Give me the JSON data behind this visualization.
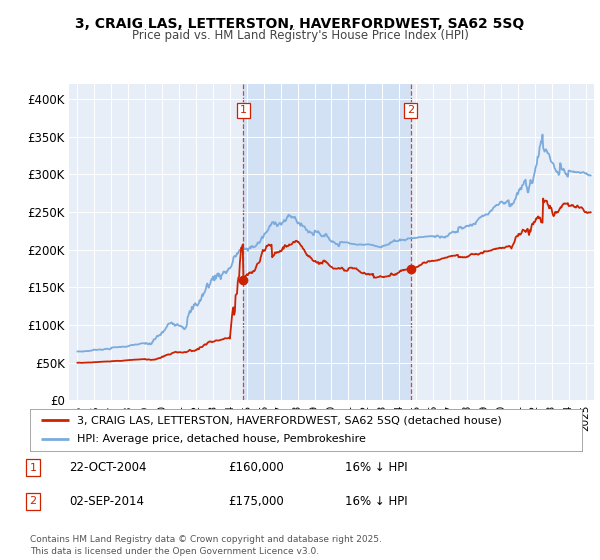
{
  "title": "3, CRAIG LAS, LETTERSTON, HAVERFORDWEST, SA62 5SQ",
  "subtitle": "Price paid vs. HM Land Registry's House Price Index (HPI)",
  "bg_color": "#ffffff",
  "plot_bg": "#e8eef8",
  "shade_color": "#d0dff5",
  "red_color": "#cc2200",
  "blue_color": "#7aabdc",
  "sale1_year": 2004.8,
  "sale2_year": 2014.67,
  "legend_label_red": "3, CRAIG LAS, LETTERSTON, HAVERFORDWEST, SA62 5SQ (detached house)",
  "legend_label_blue": "HPI: Average price, detached house, Pembrokeshire",
  "sale1_date": "22-OCT-2004",
  "sale1_price": "£160,000",
  "sale1_hpi": "16% ↓ HPI",
  "sale2_date": "02-SEP-2014",
  "sale2_price": "£175,000",
  "sale2_hpi": "16% ↓ HPI",
  "footer": "Contains HM Land Registry data © Crown copyright and database right 2025.\nThis data is licensed under the Open Government Licence v3.0.",
  "ylim_min": 0,
  "ylim_max": 420000,
  "xmin": 1994.5,
  "xmax": 2025.5
}
